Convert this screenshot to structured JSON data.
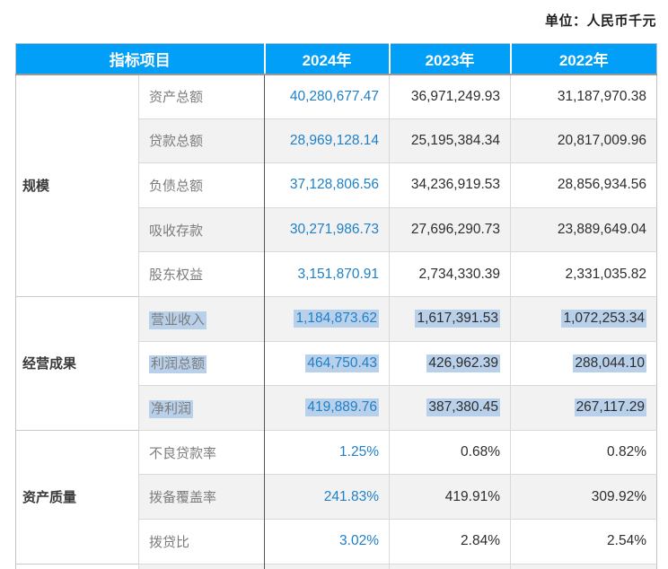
{
  "unit_label": "单位：人民币千元",
  "table": {
    "header": {
      "indicator": "指标项目",
      "years": [
        "2024年",
        "2023年",
        "2022年"
      ]
    },
    "sections": [
      {
        "group": "规模",
        "rows": [
          {
            "label": "资产总额",
            "values": [
              "40,280,677.47",
              "36,971,249.93",
              "31,187,970.38"
            ],
            "highlight": false
          },
          {
            "label": "贷款总额",
            "values": [
              "28,969,128.14",
              "25,195,384.34",
              "20,817,009.96"
            ],
            "highlight": false
          },
          {
            "label": "负债总额",
            "values": [
              "37,128,806.56",
              "34,236,919.53",
              "28,856,934.56"
            ],
            "highlight": false
          },
          {
            "label": "吸收存款",
            "values": [
              "30,271,986.73",
              "27,696,290.73",
              "23,889,649.04"
            ],
            "highlight": false
          },
          {
            "label": "股东权益",
            "values": [
              "3,151,870.91",
              "2,734,330.39",
              "2,331,035.82"
            ],
            "highlight": false
          }
        ]
      },
      {
        "group": "经营成果",
        "rows": [
          {
            "label": "营业收入",
            "values": [
              "1,184,873.62",
              "1,617,391.53",
              "1,072,253.34"
            ],
            "highlight": true
          },
          {
            "label": "利润总额",
            "values": [
              "464,750.43",
              "426,962.39",
              "288,044.10"
            ],
            "highlight": true
          },
          {
            "label": "净利润",
            "values": [
              "419,889.76",
              "387,380.45",
              "267,117.29"
            ],
            "highlight": true
          }
        ]
      },
      {
        "group": "资产质量",
        "rows": [
          {
            "label": "不良贷款率",
            "values": [
              "1.25%",
              "0.68%",
              "0.82%"
            ],
            "highlight": false
          },
          {
            "label": "拨备覆盖率",
            "values": [
              "241.83%",
              "419.91%",
              "309.92%"
            ],
            "highlight": false
          },
          {
            "label": "拨贷比",
            "values": [
              "3.02%",
              "2.84%",
              "2.54%"
            ],
            "highlight": false
          }
        ]
      }
    ]
  },
  "colors": {
    "header_bg": "#019ff8",
    "header_text": "#ffffff",
    "year_2024_value": "#1e80c8",
    "value_text": "#2d2d2d",
    "indicator_text": "#7c7c7c",
    "selection_highlight": "#b9d0ea",
    "shaded_row_bg": "#f2f2f2",
    "grid_line": "#d9d9d9",
    "dark_divider": "#565656"
  }
}
